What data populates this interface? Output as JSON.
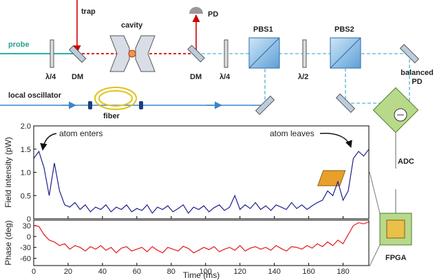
{
  "diagram": {
    "labels": {
      "probe": "probe",
      "trap": "trap",
      "cavity": "cavity",
      "pd": "PD",
      "pbs1": "PBS1",
      "pbs2": "PBS2",
      "qwp1": "λ/4",
      "dm1": "DM",
      "dm2": "DM",
      "qwp2": "λ/4",
      "hwp": "λ/2",
      "lo": "local oscillator",
      "fiber": "fiber",
      "bpd": "balanced PD",
      "adc": "ADC",
      "fpga": "FPGA"
    }
  },
  "chart_data": [
    {
      "type": "line",
      "y_label": "Field intensity (pW)",
      "color": "#1c1f8c",
      "x": [
        0,
        3,
        6,
        9,
        12,
        15,
        18,
        21,
        24,
        27,
        30,
        33,
        36,
        39,
        42,
        45,
        48,
        51,
        54,
        57,
        60,
        63,
        66,
        69,
        72,
        75,
        78,
        81,
        84,
        87,
        90,
        93,
        96,
        99,
        102,
        105,
        108,
        111,
        114,
        117,
        120,
        123,
        126,
        129,
        132,
        135,
        138,
        141,
        144,
        147,
        150,
        153,
        156,
        159,
        162,
        165,
        168,
        171,
        174,
        177,
        180,
        183,
        186,
        189,
        192,
        195
      ],
      "values": [
        1.3,
        1.45,
        1.1,
        0.5,
        1.2,
        0.6,
        0.3,
        0.25,
        0.35,
        0.2,
        0.3,
        0.15,
        0.25,
        0.2,
        0.3,
        0.15,
        0.25,
        0.2,
        0.3,
        0.15,
        0.22,
        0.18,
        0.3,
        0.12,
        0.25,
        0.2,
        0.28,
        0.15,
        0.22,
        0.3,
        0.12,
        0.25,
        0.2,
        0.28,
        0.15,
        0.24,
        0.3,
        0.18,
        0.25,
        0.5,
        0.2,
        0.3,
        0.22,
        0.35,
        0.2,
        0.28,
        0.18,
        0.3,
        0.25,
        0.2,
        0.35,
        0.22,
        0.3,
        0.2,
        0.28,
        0.35,
        0.4,
        0.6,
        0.5,
        0.8,
        0.4,
        0.6,
        1.3,
        1.45,
        1.35,
        1.5
      ],
      "xlim": [
        0,
        195
      ],
      "ylim": [
        0,
        2.0
      ],
      "yticks": [
        0,
        0.5,
        {
          "value": 1.0,
          "label": "1.0"
        },
        1.5,
        {
          "value": 2.0,
          "label": "2.0"
        }
      ],
      "annotations": [
        "atom enters",
        "atom leaves"
      ]
    },
    {
      "type": "line",
      "y_label": "Phase (deg)",
      "x_label": "Time (ms)",
      "color": "#e3161c",
      "x": [
        0,
        3,
        6,
        9,
        12,
        15,
        18,
        21,
        24,
        27,
        30,
        33,
        36,
        39,
        42,
        45,
        48,
        51,
        54,
        57,
        60,
        63,
        66,
        69,
        72,
        75,
        78,
        81,
        84,
        87,
        90,
        93,
        96,
        99,
        102,
        105,
        108,
        111,
        114,
        117,
        120,
        123,
        126,
        129,
        132,
        135,
        138,
        141,
        144,
        147,
        150,
        153,
        156,
        159,
        162,
        165,
        168,
        171,
        174,
        177,
        180,
        183,
        186,
        189,
        192,
        195
      ],
      "values": [
        30,
        28,
        5,
        -10,
        -15,
        -25,
        -20,
        -35,
        -25,
        -30,
        -40,
        -28,
        -35,
        -25,
        -38,
        -30,
        -45,
        -32,
        -28,
        -40,
        -35,
        -30,
        -42,
        -28,
        -38,
        -45,
        -30,
        -35,
        -40,
        -27,
        -33,
        -45,
        -38,
        -30,
        -36,
        -28,
        -42,
        -35,
        -30,
        -38,
        -25,
        -40,
        -32,
        -28,
        -35,
        -30,
        -38,
        -25,
        -33,
        -40,
        -28,
        -30,
        -35,
        -25,
        -32,
        -20,
        -28,
        -15,
        -25,
        -10,
        -20,
        5,
        30,
        38,
        35,
        40
      ],
      "xlim": [
        0,
        195
      ],
      "ylim": [
        -80,
        45
      ],
      "xticks": [
        0,
        20,
        40,
        60,
        80,
        100,
        120,
        140,
        160,
        180
      ],
      "yticks": [
        30,
        0,
        -30,
        -60
      ]
    }
  ]
}
